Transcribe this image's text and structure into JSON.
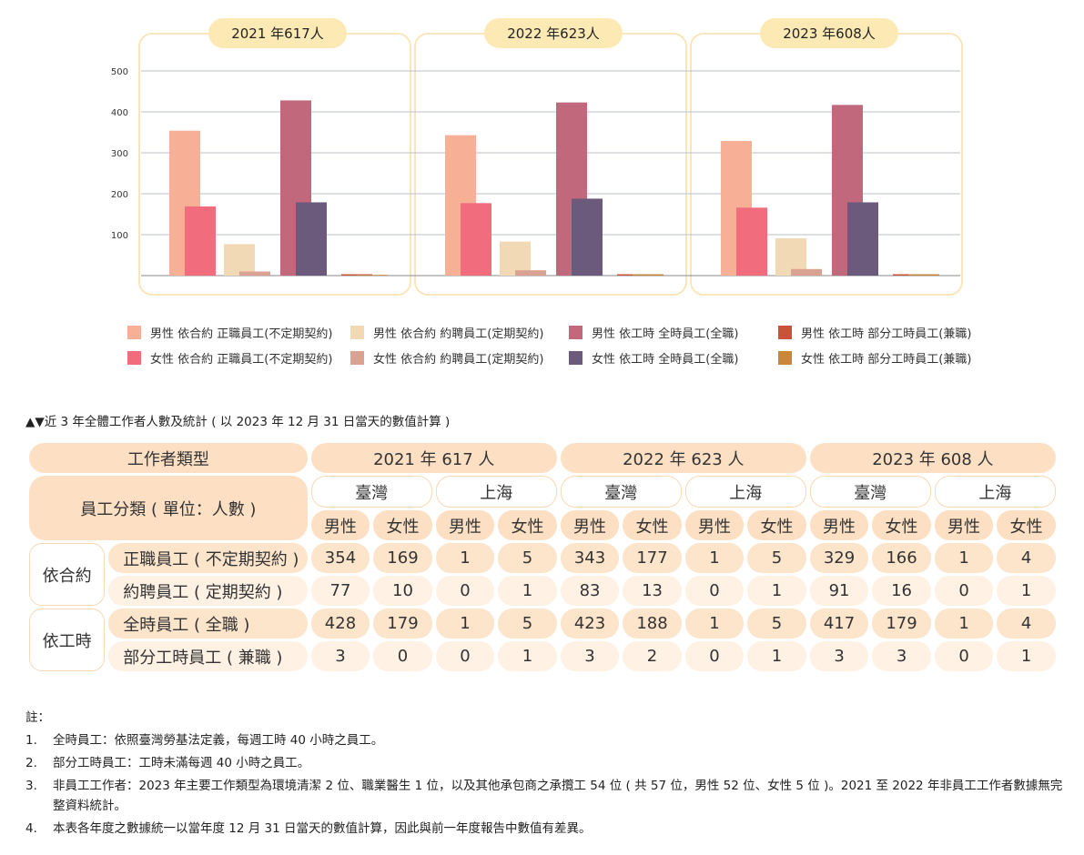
{
  "chart_data": {
    "type": "bar",
    "panels": [
      {
        "title": "2021 年617人"
      },
      {
        "title": "2022 年623人"
      },
      {
        "title": "2023 年608人"
      }
    ],
    "y_ticks": [
      "500",
      "400",
      "300",
      "200",
      "100"
    ],
    "ylim": [
      0,
      560
    ],
    "series": [
      {
        "name": "男性 依合約 正職員工(不定期契約)",
        "color": "#f7b095",
        "values": [
          354,
          343,
          329
        ]
      },
      {
        "name": "女性 依合約 正職員工(不定期契約)",
        "color": "#f16d7d",
        "values": [
          169,
          177,
          166
        ]
      },
      {
        "name": "男性 依合約 約聘員工(定期契約)",
        "color": "#f2d9b5",
        "values": [
          77,
          83,
          91
        ]
      },
      {
        "name": "女性 依合約 約聘員工(定期契約)",
        "color": "#d9a292",
        "values": [
          10,
          13,
          16
        ]
      },
      {
        "name": "男性 依工時 全時員工(全職)",
        "color": "#c2687d",
        "values": [
          428,
          423,
          417
        ]
      },
      {
        "name": "女性 依工時 全時員工(全職)",
        "color": "#6b5a7c",
        "values": [
          179,
          188,
          179
        ]
      },
      {
        "name": "男性 依工時 部分工時員工(兼職)",
        "color": "#c9533a",
        "values": [
          3,
          3,
          3
        ]
      },
      {
        "name": "女性 依工時 部分工時員工(兼職)",
        "color": "#c8873a",
        "values": [
          0,
          2,
          3
        ]
      }
    ]
  },
  "caption": "▲▼近 3 年全體工作者人數及統計 ( 以 2023 年 12 月 31 日當天的數值計算 )",
  "table": {
    "type_header": "工作者類型",
    "class_header": "員工分類 ( 單位：人數 )",
    "years": [
      "2021 年 617 人",
      "2022 年 623 人",
      "2023 年 608 人"
    ],
    "regions": [
      "臺灣",
      "上海"
    ],
    "genders": [
      "男性",
      "女性"
    ],
    "groups": [
      {
        "label": "依合約",
        "rows": [
          {
            "label": "正職員工 ( 不定期契約 )",
            "values": [
              354,
              169,
              1,
              5,
              343,
              177,
              1,
              5,
              329,
              166,
              1,
              4
            ]
          },
          {
            "label": "約聘員工 ( 定期契約 )",
            "values": [
              77,
              10,
              0,
              1,
              83,
              13,
              0,
              1,
              91,
              16,
              0,
              1
            ]
          }
        ]
      },
      {
        "label": "依工時",
        "rows": [
          {
            "label": "全時員工 ( 全職 )",
            "values": [
              428,
              179,
              1,
              5,
              423,
              188,
              1,
              5,
              417,
              179,
              1,
              4
            ]
          },
          {
            "label": "部分工時員工 ( 兼職 )",
            "values": [
              3,
              0,
              0,
              1,
              3,
              2,
              0,
              1,
              3,
              3,
              0,
              1
            ]
          }
        ]
      }
    ]
  },
  "notes": {
    "title": "註：",
    "items": [
      {
        "num": "1.",
        "text": "全時員工：依照臺灣勞基法定義，每週工時 40 小時之員工。"
      },
      {
        "num": "2.",
        "text": "部分工時員工：工時未滿每週 40 小時之員工。"
      },
      {
        "num": "3.",
        "text": "非員工工作者：2023 年主要工作類型為環境清潔 2 位、職業醫生 1 位，以及其他承包商之承攬工 54 位 ( 共 57 位，男性 52 位、女性 5 位 )。2021 至 2022 年非員工工作者數據無完整資料統計。"
      },
      {
        "num": "4.",
        "text": "本表各年度之數據統一以當年度 12 月 31 日當天的數值計算，因此與前一年度報告中數值有差異。"
      }
    ]
  }
}
